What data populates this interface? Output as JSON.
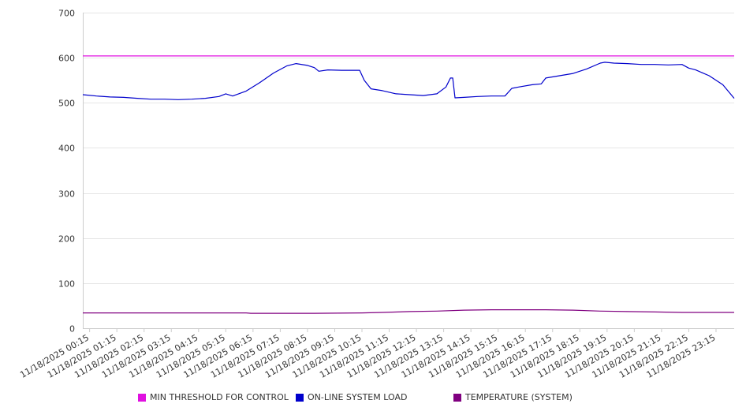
{
  "chart_data": {
    "type": "line",
    "title": "",
    "xlabel": "",
    "ylabel": "",
    "ylim": [
      0,
      700
    ],
    "yticks": [
      0,
      100,
      200,
      300,
      400,
      500,
      600,
      700
    ],
    "grid": true,
    "legend_position": "bottom",
    "x_start": "11/18/2025 00:00",
    "x_end": "11/18/2025 23:55",
    "x_step_minutes": 5,
    "x_tick_labels": [
      "11/18/2025 00:15",
      "11/18/2025 01:15",
      "11/18/2025 02:15",
      "11/18/2025 03:15",
      "11/18/2025 04:15",
      "11/18/2025 05:15",
      "11/18/2025 06:15",
      "11/18/2025 07:15",
      "11/18/2025 08:15",
      "11/18/2025 09:15",
      "11/18/2025 10:15",
      "11/18/2025 11:15",
      "11/18/2025 12:15",
      "11/18/2025 13:15",
      "11/18/2025 14:15",
      "11/18/2025 15:15",
      "11/18/2025 16:15",
      "11/18/2025 17:15",
      "11/18/2025 18:15",
      "11/18/2025 19:15",
      "11/18/2025 20:15",
      "11/18/2025 21:15",
      "11/18/2025 22:15",
      "11/18/2025 23:15"
    ],
    "series": [
      {
        "name": "MIN THRESHOLD FOR CONTROL",
        "color": "#e010e0",
        "points": [
          [
            "11/18/2025 00:00",
            604
          ],
          [
            "11/18/2025 23:55",
            604
          ]
        ]
      },
      {
        "name": "ON-LINE SYSTEM LOAD",
        "color": "#0000cc",
        "points": [
          [
            "11/18/2025 00:00",
            518
          ],
          [
            "11/18/2025 00:30",
            515
          ],
          [
            "11/18/2025 01:00",
            513
          ],
          [
            "11/18/2025 01:30",
            512
          ],
          [
            "11/18/2025 02:00",
            510
          ],
          [
            "11/18/2025 02:30",
            508
          ],
          [
            "11/18/2025 03:00",
            508
          ],
          [
            "11/18/2025 03:30",
            507
          ],
          [
            "11/18/2025 04:00",
            508
          ],
          [
            "11/18/2025 04:30",
            510
          ],
          [
            "11/18/2025 05:00",
            514
          ],
          [
            "11/18/2025 05:15",
            520
          ],
          [
            "11/18/2025 05:30",
            515
          ],
          [
            "11/18/2025 06:00",
            526
          ],
          [
            "11/18/2025 06:30",
            545
          ],
          [
            "11/18/2025 07:00",
            566
          ],
          [
            "11/18/2025 07:30",
            582
          ],
          [
            "11/18/2025 07:50",
            587
          ],
          [
            "11/18/2025 08:15",
            583
          ],
          [
            "11/18/2025 08:30",
            578
          ],
          [
            "11/18/2025 08:40",
            570
          ],
          [
            "11/18/2025 09:00",
            573
          ],
          [
            "11/18/2025 09:30",
            572
          ],
          [
            "11/18/2025 10:10",
            572
          ],
          [
            "11/18/2025 10:20",
            550
          ],
          [
            "11/18/2025 10:35",
            531
          ],
          [
            "11/18/2025 11:00",
            527
          ],
          [
            "11/18/2025 11:30",
            520
          ],
          [
            "11/18/2025 12:00",
            518
          ],
          [
            "11/18/2025 12:30",
            516
          ],
          [
            "11/18/2025 13:00",
            520
          ],
          [
            "11/18/2025 13:20",
            535
          ],
          [
            "11/18/2025 13:30",
            555
          ],
          [
            "11/18/2025 13:35",
            555
          ],
          [
            "11/18/2025 13:40",
            511
          ],
          [
            "11/18/2025 14:00",
            512
          ],
          [
            "11/18/2025 14:30",
            514
          ],
          [
            "11/18/2025 15:00",
            515
          ],
          [
            "11/18/2025 15:30",
            515
          ],
          [
            "11/18/2025 15:45",
            532
          ],
          [
            "11/18/2025 16:00",
            535
          ],
          [
            "11/18/2025 16:30",
            540
          ],
          [
            "11/18/2025 16:50",
            542
          ],
          [
            "11/18/2025 17:00",
            555
          ],
          [
            "11/18/2025 17:30",
            560
          ],
          [
            "11/18/2025 18:00",
            565
          ],
          [
            "11/18/2025 18:30",
            575
          ],
          [
            "11/18/2025 19:00",
            588
          ],
          [
            "11/18/2025 19:10",
            590
          ],
          [
            "11/18/2025 19:30",
            588
          ],
          [
            "11/18/2025 20:00",
            587
          ],
          [
            "11/18/2025 20:30",
            585
          ],
          [
            "11/18/2025 21:00",
            585
          ],
          [
            "11/18/2025 21:30",
            584
          ],
          [
            "11/18/2025 22:00",
            585
          ],
          [
            "11/18/2025 22:15",
            577
          ],
          [
            "11/18/2025 22:30",
            573
          ],
          [
            "11/18/2025 23:00",
            560
          ],
          [
            "11/18/2025 23:30",
            540
          ],
          [
            "11/18/2025 23:55",
            510
          ]
        ]
      },
      {
        "name": "TEMPERATURE (SYSTEM)",
        "color": "#800080",
        "points": [
          [
            "11/18/2025 00:00",
            34
          ],
          [
            "11/18/2025 06:00",
            34
          ],
          [
            "11/18/2025 06:10",
            33
          ],
          [
            "11/18/2025 08:30",
            33
          ],
          [
            "11/18/2025 10:15",
            34
          ],
          [
            "11/18/2025 11:00",
            35
          ],
          [
            "11/18/2025 12:00",
            37
          ],
          [
            "11/18/2025 13:00",
            38
          ],
          [
            "11/18/2025 14:00",
            40
          ],
          [
            "11/18/2025 15:00",
            41
          ],
          [
            "11/18/2025 16:00",
            41
          ],
          [
            "11/18/2025 17:00",
            41
          ],
          [
            "11/18/2025 18:00",
            40
          ],
          [
            "11/18/2025 19:00",
            38
          ],
          [
            "11/18/2025 20:00",
            37
          ],
          [
            "11/18/2025 21:00",
            36
          ],
          [
            "11/18/2025 22:00",
            35
          ],
          [
            "11/18/2025 23:55",
            35
          ]
        ]
      }
    ]
  }
}
